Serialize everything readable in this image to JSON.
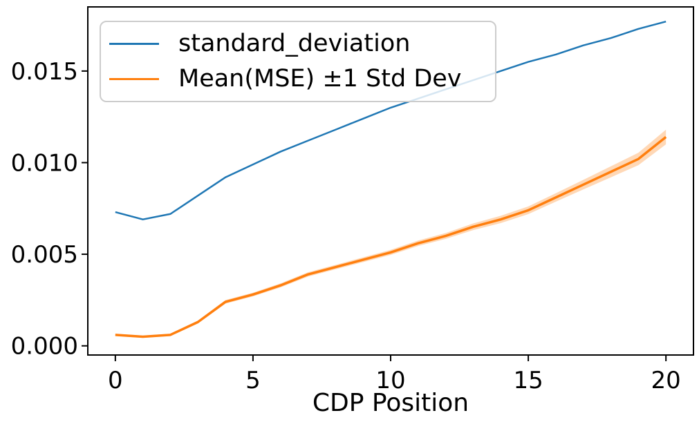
{
  "chart_data": {
    "type": "line",
    "title": "",
    "xlabel": "CDP Position",
    "ylabel": "",
    "x": [
      0,
      1,
      2,
      3,
      4,
      5,
      6,
      7,
      8,
      9,
      10,
      11,
      12,
      13,
      14,
      15,
      16,
      17,
      18,
      19,
      20
    ],
    "series": [
      {
        "name": "standard_deviation",
        "color": "#1f77b4",
        "line_width": 2.5,
        "values": [
          0.0073,
          0.0069,
          0.0072,
          0.0082,
          0.0092,
          0.0099,
          0.0106,
          0.0112,
          0.0118,
          0.0124,
          0.013,
          0.0135,
          0.014,
          0.0145,
          0.015,
          0.0155,
          0.0159,
          0.0164,
          0.0168,
          0.0173,
          0.0177
        ]
      },
      {
        "name": "Mean(MSE) ±1 Std Dev",
        "color": "#ff7f0e",
        "line_width": 3.5,
        "values": [
          0.0006,
          0.0005,
          0.0006,
          0.0013,
          0.0024,
          0.0028,
          0.0033,
          0.0039,
          0.0043,
          0.0047,
          0.0051,
          0.0056,
          0.006,
          0.0065,
          0.0069,
          0.0074,
          0.0081,
          0.0088,
          0.0095,
          0.0102,
          0.0114
        ],
        "band_halfwidth": [
          6e-05,
          6e-05,
          6e-05,
          8e-05,
          0.0001,
          0.0001,
          0.00011,
          0.00012,
          0.00012,
          0.00013,
          0.00014,
          0.00015,
          0.00016,
          0.00018,
          0.0002,
          0.00021,
          0.00023,
          0.00026,
          0.0003,
          0.00034,
          0.0004
        ],
        "band_opacity": 0.3
      }
    ],
    "xlim": [
      -1,
      21
    ],
    "ylim": [
      -0.0005,
      0.0185
    ],
    "xticks": [
      0,
      5,
      10,
      15,
      20
    ],
    "xtick_labels": [
      "0",
      "5",
      "10",
      "15",
      "20"
    ],
    "yticks": [
      0,
      0.005,
      0.01,
      0.015
    ],
    "ytick_labels": [
      "0.000",
      "0.005",
      "0.010",
      "0.015"
    ],
    "grid": false,
    "legend_position": "upper left",
    "axis_color": "#000000",
    "legend_border_color": "#cccccc"
  }
}
